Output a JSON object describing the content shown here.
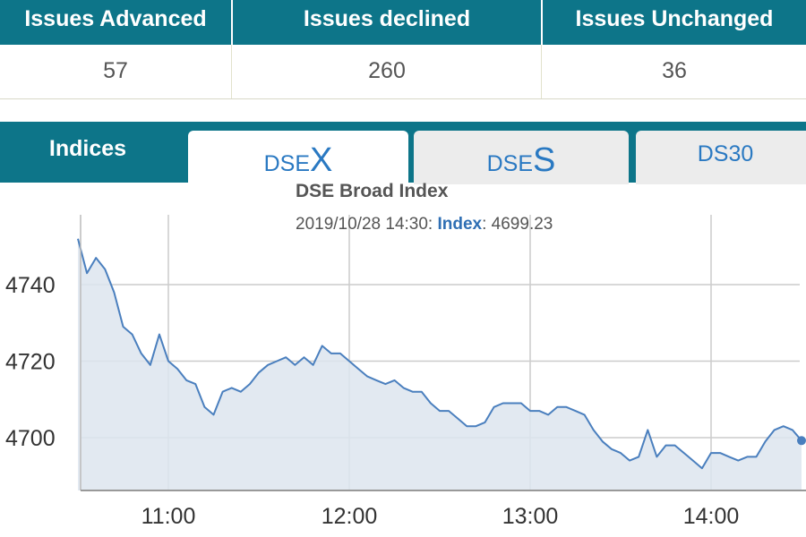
{
  "stats": {
    "headers": [
      "Issues Advanced",
      "Issues declined",
      "Issues Unchanged"
    ],
    "values": [
      "57",
      "260",
      "36"
    ]
  },
  "tabs": {
    "indices_label": "Indices",
    "items": [
      {
        "prefix": "DSE",
        "suffix": "X",
        "active": true
      },
      {
        "prefix": "DSE",
        "suffix": "S",
        "active": false
      },
      {
        "prefix": "DS30",
        "suffix": "",
        "active": false
      }
    ]
  },
  "chart_info": {
    "title": "DSE Broad Index",
    "timestamp": "2019/10/28 14:30",
    "series_label": "Index",
    "sep": ":",
    "value": "4699.23"
  },
  "colors": {
    "header_bg": "#0d7589",
    "line": "#4a7fbe",
    "area": "#dde5ef",
    "tab_text": "#2a79c2"
  },
  "chart_data": {
    "type": "area",
    "title": "DSE Broad Index",
    "xlabel": "",
    "ylabel": "",
    "x_ticks": [
      "11:00",
      "12:00",
      "13:00",
      "14:00"
    ],
    "y_ticks": [
      4700,
      4720,
      4740
    ],
    "ylim": [
      4687,
      4760
    ],
    "grid": true,
    "legend": "none",
    "series": [
      {
        "values": [
          [
            "10:30",
            4752
          ],
          [
            "10:33",
            4743
          ],
          [
            "10:36",
            4747
          ],
          [
            "10:39",
            4744
          ],
          [
            "10:42",
            4738
          ],
          [
            "10:45",
            4729
          ],
          [
            "10:48",
            4727
          ],
          [
            "10:51",
            4722
          ],
          [
            "10:54",
            4719
          ],
          [
            "10:57",
            4727
          ],
          [
            "11:00",
            4720
          ],
          [
            "11:03",
            4718
          ],
          [
            "11:06",
            4715
          ],
          [
            "11:09",
            4714
          ],
          [
            "11:12",
            4708
          ],
          [
            "11:15",
            4706
          ],
          [
            "11:18",
            4712
          ],
          [
            "11:21",
            4713
          ],
          [
            "11:24",
            4712
          ],
          [
            "11:27",
            4714
          ],
          [
            "11:30",
            4717
          ],
          [
            "11:33",
            4719
          ],
          [
            "11:36",
            4720
          ],
          [
            "11:39",
            4721
          ],
          [
            "11:42",
            4719
          ],
          [
            "11:45",
            4721
          ],
          [
            "11:48",
            4719
          ],
          [
            "11:51",
            4724
          ],
          [
            "11:54",
            4722
          ],
          [
            "11:57",
            4722
          ],
          [
            "12:00",
            4720
          ],
          [
            "12:03",
            4718
          ],
          [
            "12:06",
            4716
          ],
          [
            "12:09",
            4715
          ],
          [
            "12:12",
            4714
          ],
          [
            "12:15",
            4715
          ],
          [
            "12:18",
            4713
          ],
          [
            "12:21",
            4712
          ],
          [
            "12:24",
            4712
          ],
          [
            "12:27",
            4709
          ],
          [
            "12:30",
            4707
          ],
          [
            "12:33",
            4707
          ],
          [
            "12:36",
            4705
          ],
          [
            "12:39",
            4703
          ],
          [
            "12:42",
            4703
          ],
          [
            "12:45",
            4704
          ],
          [
            "12:48",
            4708
          ],
          [
            "12:51",
            4709
          ],
          [
            "12:54",
            4709
          ],
          [
            "12:57",
            4709
          ],
          [
            "13:00",
            4707
          ],
          [
            "13:03",
            4707
          ],
          [
            "13:06",
            4706
          ],
          [
            "13:09",
            4708
          ],
          [
            "13:12",
            4708
          ],
          [
            "13:15",
            4707
          ],
          [
            "13:18",
            4706
          ],
          [
            "13:21",
            4702
          ],
          [
            "13:24",
            4699
          ],
          [
            "13:27",
            4697
          ],
          [
            "13:30",
            4696
          ],
          [
            "13:33",
            4694
          ],
          [
            "13:36",
            4695
          ],
          [
            "13:39",
            4702
          ],
          [
            "13:42",
            4695
          ],
          [
            "13:45",
            4698
          ],
          [
            "13:48",
            4698
          ],
          [
            "13:51",
            4696
          ],
          [
            "13:54",
            4694
          ],
          [
            "13:57",
            4692
          ],
          [
            "14:00",
            4696
          ],
          [
            "14:03",
            4696
          ],
          [
            "14:06",
            4695
          ],
          [
            "14:09",
            4694
          ],
          [
            "14:12",
            4695
          ],
          [
            "14:15",
            4695
          ],
          [
            "14:18",
            4699
          ],
          [
            "14:21",
            4702
          ],
          [
            "14:24",
            4703
          ],
          [
            "14:27",
            4702
          ],
          [
            "14:30",
            4699.23
          ]
        ]
      }
    ]
  }
}
